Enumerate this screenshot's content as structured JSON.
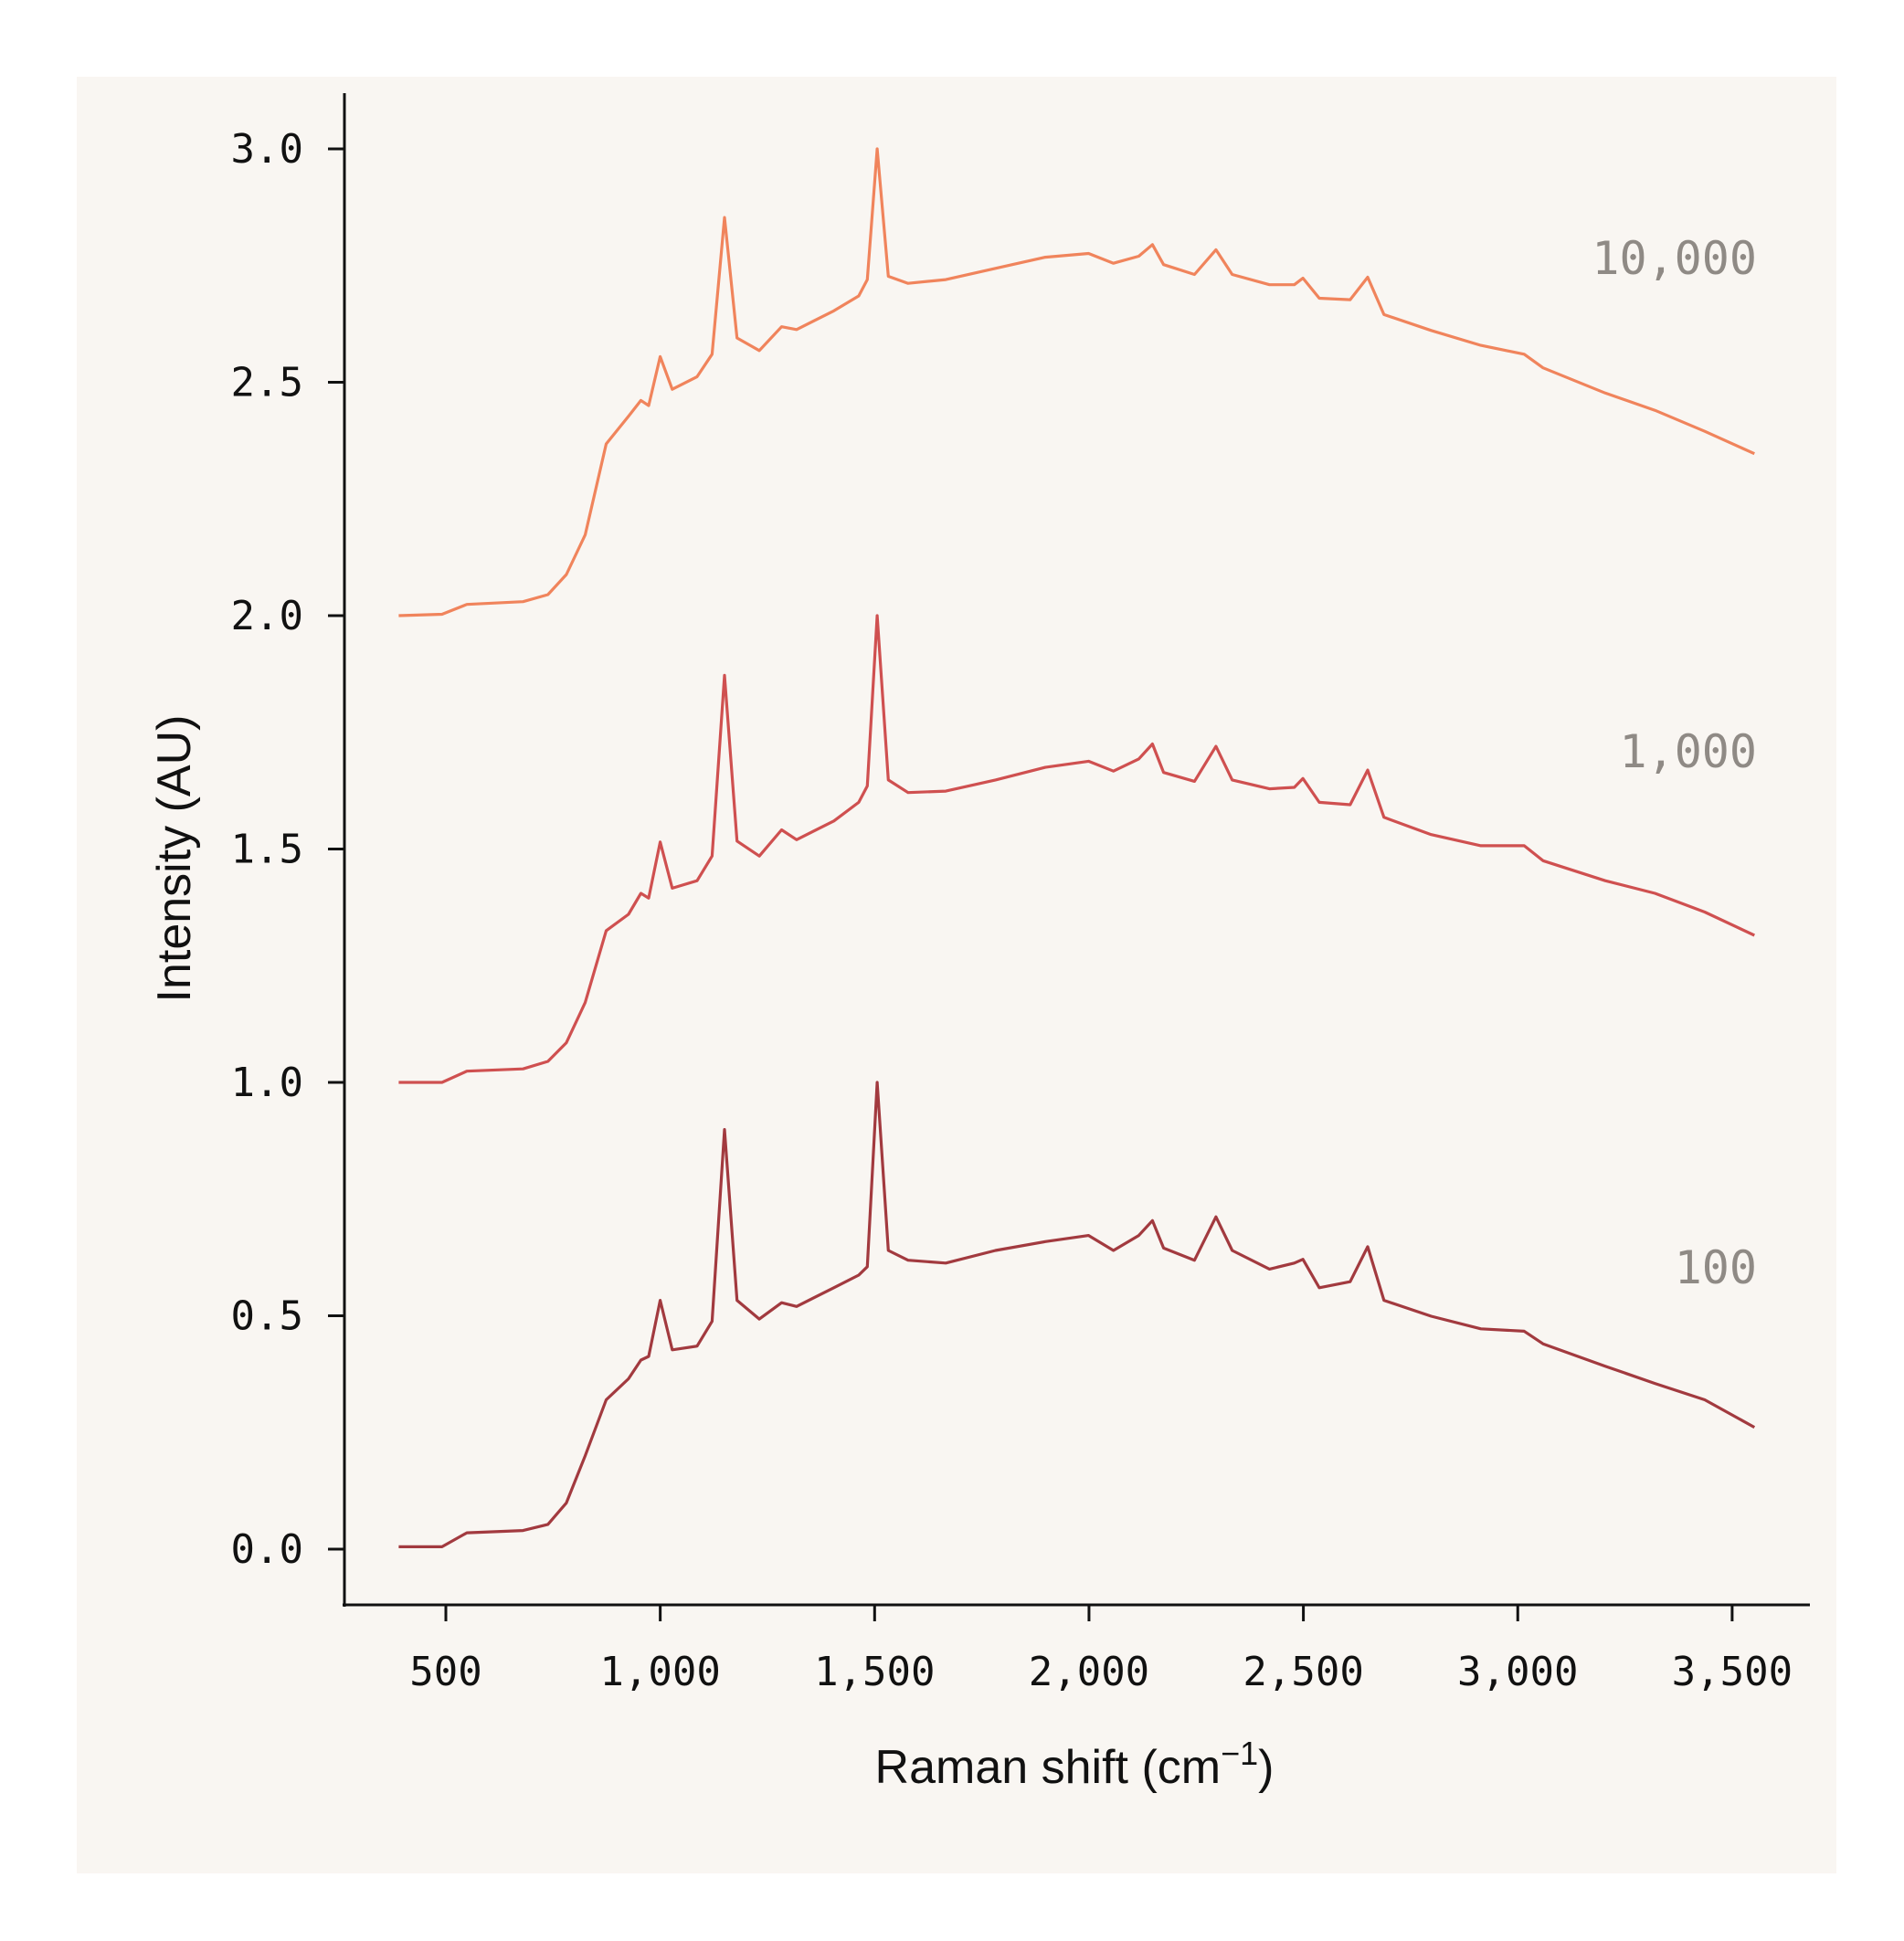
{
  "chart_data": {
    "type": "line",
    "xlabel": "Raman shift (cm",
    "xlabel_superscript": "−1",
    "xlabel_suffix": ")",
    "ylabel": "Intensity (AU)",
    "xlim": [
      290,
      3630
    ],
    "ylim": [
      -0.12,
      3.12
    ],
    "xticks": [
      500,
      1000,
      1500,
      2000,
      2500,
      3000,
      3500
    ],
    "xtick_labels": [
      "500",
      "1,000",
      "1,500",
      "2,000",
      "2,500",
      "3,000",
      "3,500"
    ],
    "yticks": [
      0.0,
      0.5,
      1.0,
      1.5,
      2.0,
      2.5,
      3.0
    ],
    "ytick_labels": [
      "0.0",
      "0.5",
      "1.0",
      "1.5",
      "2.0",
      "2.5",
      "3.0"
    ],
    "grid": false,
    "background": "#f9f6f2",
    "x": [
      390,
      491,
      549,
      680,
      738,
      781,
      825,
      874,
      926,
      955,
      973,
      1000,
      1028,
      1086,
      1121,
      1150,
      1179,
      1231,
      1283,
      1318,
      1405,
      1463,
      1483,
      1506,
      1532,
      1578,
      1666,
      1782,
      1898,
      1999,
      2057,
      2116,
      2148,
      2174,
      2246,
      2296,
      2334,
      2421,
      2479,
      2499,
      2537,
      2609,
      2650,
      2688,
      2798,
      2914,
      3015,
      3059,
      3204,
      3320,
      3436,
      3552
    ],
    "series": [
      {
        "name": "10,000",
        "color": "#f0845c",
        "values": [
          2.0,
          2.003,
          2.024,
          2.03,
          2.045,
          2.088,
          2.173,
          2.368,
          2.427,
          2.461,
          2.45,
          2.555,
          2.485,
          2.512,
          2.56,
          2.853,
          2.595,
          2.568,
          2.619,
          2.613,
          2.653,
          2.685,
          2.72,
          3.0,
          2.727,
          2.712,
          2.72,
          2.744,
          2.768,
          2.776,
          2.755,
          2.77,
          2.795,
          2.752,
          2.731,
          2.784,
          2.731,
          2.709,
          2.709,
          2.723,
          2.68,
          2.677,
          2.725,
          2.645,
          2.611,
          2.579,
          2.56,
          2.531,
          2.477,
          2.44,
          2.395,
          2.347
        ]
      },
      {
        "name": "1,000",
        "color": "#cf5050",
        "values": [
          1.0,
          1.0,
          1.024,
          1.029,
          1.045,
          1.085,
          1.171,
          1.325,
          1.36,
          1.405,
          1.395,
          1.515,
          1.416,
          1.432,
          1.485,
          1.872,
          1.517,
          1.485,
          1.541,
          1.52,
          1.56,
          1.6,
          1.635,
          2.0,
          1.648,
          1.621,
          1.624,
          1.648,
          1.675,
          1.688,
          1.667,
          1.693,
          1.725,
          1.664,
          1.645,
          1.72,
          1.648,
          1.629,
          1.632,
          1.651,
          1.6,
          1.595,
          1.669,
          1.568,
          1.531,
          1.507,
          1.507,
          1.475,
          1.432,
          1.405,
          1.365,
          1.315
        ]
      },
      {
        "name": "100",
        "color": "#a23a3f",
        "values": [
          0.005,
          0.005,
          0.035,
          0.04,
          0.053,
          0.099,
          0.2,
          0.32,
          0.365,
          0.405,
          0.413,
          0.533,
          0.427,
          0.435,
          0.488,
          0.899,
          0.533,
          0.493,
          0.528,
          0.52,
          0.56,
          0.587,
          0.605,
          1.0,
          0.64,
          0.619,
          0.613,
          0.64,
          0.659,
          0.672,
          0.64,
          0.672,
          0.704,
          0.645,
          0.619,
          0.712,
          0.64,
          0.6,
          0.613,
          0.621,
          0.56,
          0.573,
          0.648,
          0.533,
          0.499,
          0.472,
          0.467,
          0.44,
          0.392,
          0.355,
          0.32,
          0.261
        ]
      }
    ]
  }
}
